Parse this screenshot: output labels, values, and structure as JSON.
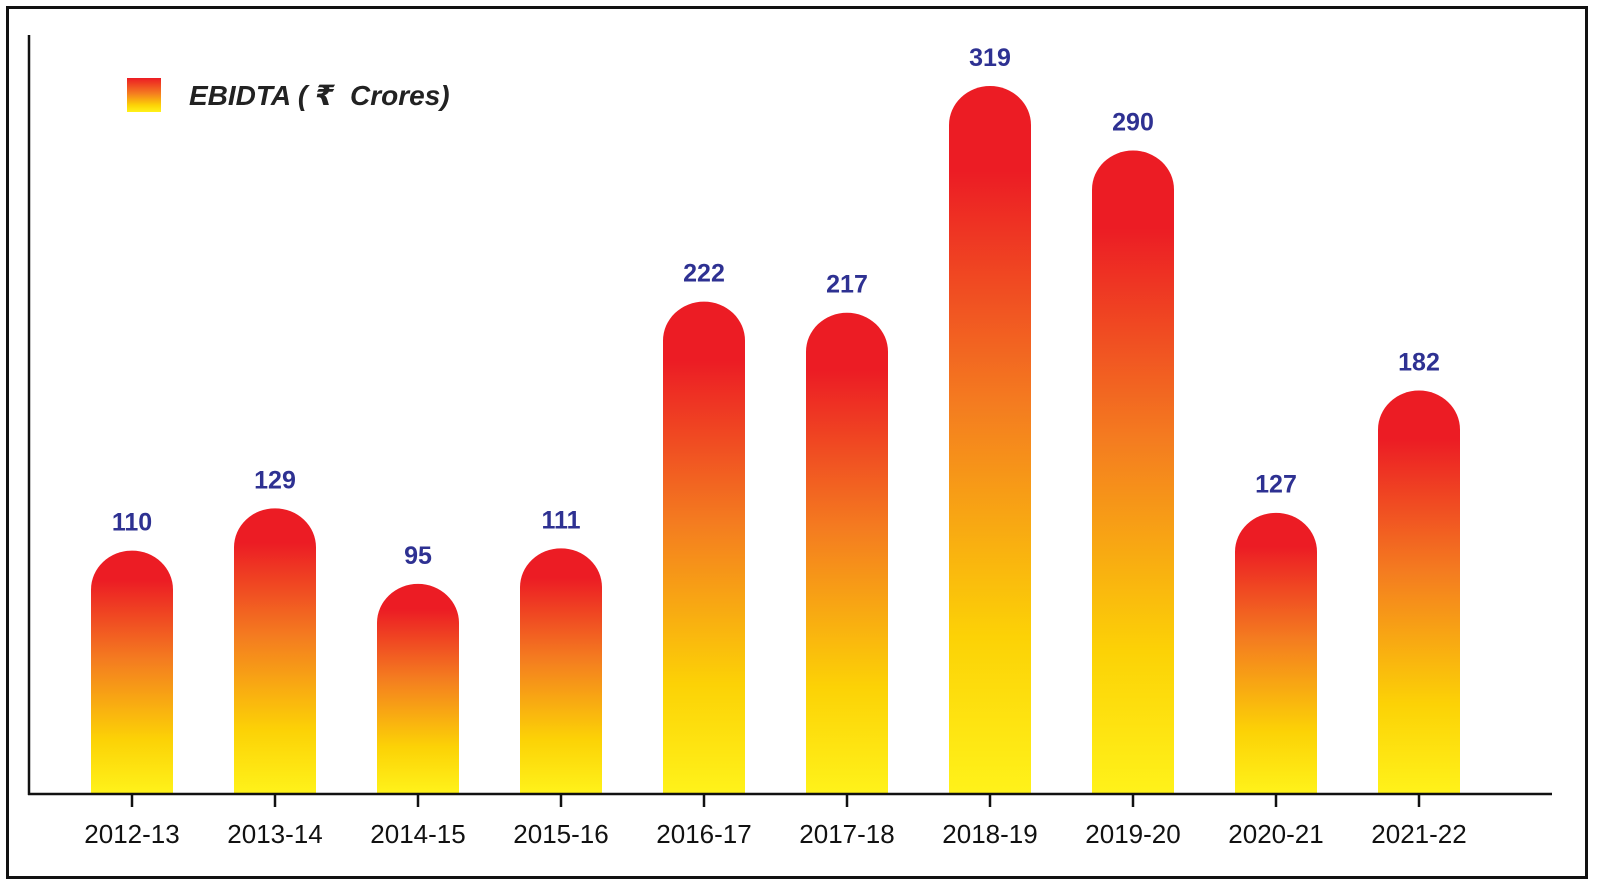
{
  "chart_data": {
    "type": "bar",
    "title": "",
    "xlabel": "",
    "ylabel": "",
    "legend": {
      "position": "top-left",
      "entries": [
        "EBIDTA ( ₹  Crores)"
      ]
    },
    "series": [
      {
        "name": "EBIDTA ( ₹  Crores)",
        "values": [
          110,
          129,
          95,
          111,
          222,
          217,
          319,
          290,
          127,
          182
        ]
      }
    ],
    "categories": [
      "2012-13",
      "2013-14",
      "2014-15",
      "2015-16",
      "2016-17",
      "2017-18",
      "2018-19",
      "2019-20",
      "2020-21",
      "2021-22"
    ],
    "data_labels": [
      "110",
      "129",
      "95",
      "111",
      "222",
      "217",
      "319",
      "290",
      "127",
      "182"
    ],
    "ylim": [
      0,
      340
    ],
    "grid": false,
    "colors": {
      "bar_top": "#ec1c24",
      "bar_mid": "#f47c20",
      "bar_bottom": "#fff21a",
      "data_label": "#2e3192",
      "axis": "#111111"
    }
  }
}
